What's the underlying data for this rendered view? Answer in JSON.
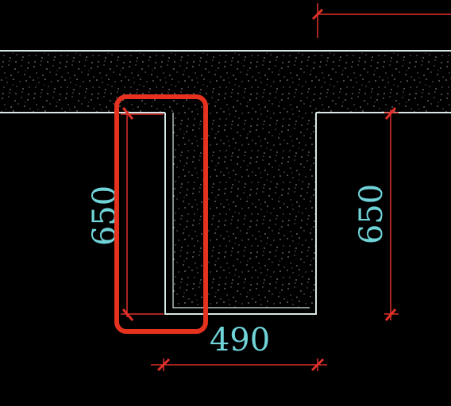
{
  "drawing": {
    "dimensions": {
      "left_height": "650",
      "right_height": "650",
      "bottom_width": "490"
    },
    "colors": {
      "background": "#000000",
      "outline": "#d8e8e8",
      "dimension_line": "#e0302a",
      "dimension_text": "#6fd3d8",
      "highlight": "#e5321f",
      "speckle": "#ffffff"
    }
  }
}
